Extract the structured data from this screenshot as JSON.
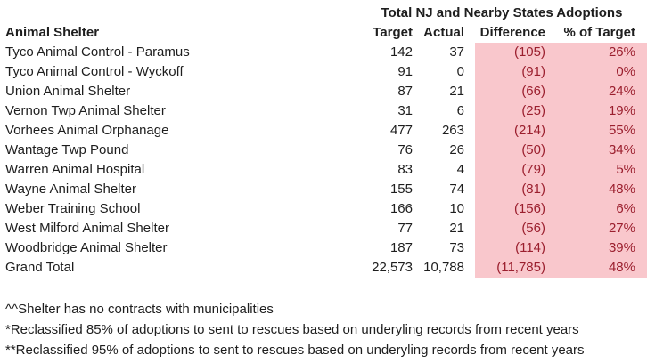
{
  "chart_data": {
    "type": "table",
    "title": "Total NJ and Nearby States Adoptions",
    "columns": [
      "Animal Shelter",
      "Target",
      "Actual",
      "Difference",
      "% of Target"
    ],
    "rows": [
      {
        "shelter": "Tyco Animal Control - Paramus",
        "target": "142",
        "actual": "37",
        "difference": "(105)",
        "pct": "26%"
      },
      {
        "shelter": "Tyco Animal Control - Wyckoff",
        "target": "91",
        "actual": "0",
        "difference": "(91)",
        "pct": "0%"
      },
      {
        "shelter": "Union Animal Shelter",
        "target": "87",
        "actual": "21",
        "difference": "(66)",
        "pct": "24%"
      },
      {
        "shelter": "Vernon Twp Animal Shelter",
        "target": "31",
        "actual": "6",
        "difference": "(25)",
        "pct": "19%"
      },
      {
        "shelter": "Vorhees Animal Orphanage",
        "target": "477",
        "actual": "263",
        "difference": "(214)",
        "pct": "55%"
      },
      {
        "shelter": "Wantage Twp Pound",
        "target": "76",
        "actual": "26",
        "difference": "(50)",
        "pct": "34%"
      },
      {
        "shelter": "Warren Animal Hospital",
        "target": "83",
        "actual": "4",
        "difference": "(79)",
        "pct": "5%"
      },
      {
        "shelter": "Wayne Animal Shelter",
        "target": "155",
        "actual": "74",
        "difference": "(81)",
        "pct": "48%"
      },
      {
        "shelter": "Weber Training School",
        "target": "166",
        "actual": "10",
        "difference": "(156)",
        "pct": "6%"
      },
      {
        "shelter": "West Milford Animal Shelter",
        "target": "77",
        "actual": "21",
        "difference": "(56)",
        "pct": "27%"
      },
      {
        "shelter": "Woodbridge Animal Shelter",
        "target": "187",
        "actual": "73",
        "difference": "(114)",
        "pct": "39%"
      },
      {
        "shelter": "Grand Total",
        "target": "22,573",
        "actual": "10,788",
        "difference": "(11,785)",
        "pct": "48%"
      }
    ],
    "footnotes": [
      "^^Shelter has no contracts with municipalities",
      "*Reclassified 85% of adoptions to sent to rescues based on underyling records from recent years",
      "**Reclassified 95% of adoptions to sent to rescues based on underyling records from recent years"
    ]
  },
  "colors": {
    "negative_fill": "#f9c7cc",
    "negative_text": "#9b1f2e",
    "body_text": "#1e1e1e",
    "background": "#ffffff"
  }
}
